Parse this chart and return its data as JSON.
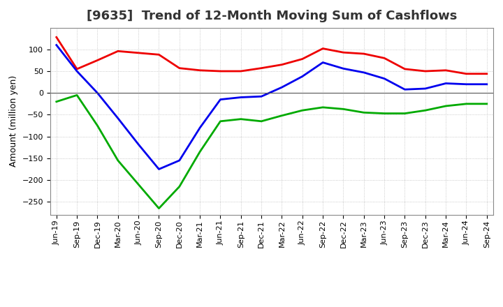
{
  "title": "[9635]  Trend of 12-Month Moving Sum of Cashflows",
  "ylabel": "Amount (million yen)",
  "background_color": "#ffffff",
  "plot_bg_color": "#ffffff",
  "grid_color": "#bbbbbb",
  "x_labels": [
    "Jun-19",
    "Sep-19",
    "Dec-19",
    "Mar-20",
    "Jun-20",
    "Sep-20",
    "Dec-20",
    "Mar-21",
    "Jun-21",
    "Sep-21",
    "Dec-21",
    "Mar-22",
    "Jun-22",
    "Sep-22",
    "Dec-22",
    "Mar-23",
    "Jun-23",
    "Sep-23",
    "Dec-23",
    "Mar-24",
    "Jun-24",
    "Sep-24"
  ],
  "operating": [
    128,
    55,
    75,
    96,
    92,
    88,
    57,
    52,
    50,
    50,
    57,
    65,
    78,
    102,
    93,
    90,
    80,
    55,
    50,
    52,
    44,
    44
  ],
  "investing": [
    -20,
    -5,
    -75,
    -155,
    -210,
    -265,
    -215,
    -135,
    -65,
    -60,
    -65,
    -52,
    -40,
    -33,
    -37,
    -45,
    -47,
    -47,
    -40,
    -30,
    -25,
    -25
  ],
  "free": [
    110,
    50,
    0,
    -58,
    -118,
    -175,
    -155,
    -80,
    -15,
    -10,
    -8,
    13,
    38,
    70,
    56,
    47,
    33,
    8,
    10,
    22,
    20,
    20
  ],
  "ylim": [
    -280,
    150
  ],
  "yticks": [
    -250,
    -200,
    -150,
    -100,
    -50,
    0,
    50,
    100
  ],
  "line_colors": {
    "operating": "#ee0000",
    "investing": "#00aa00",
    "free": "#0000ee"
  },
  "title_fontsize": 13,
  "axis_fontsize": 9,
  "tick_fontsize": 8,
  "legend_fontsize": 9
}
